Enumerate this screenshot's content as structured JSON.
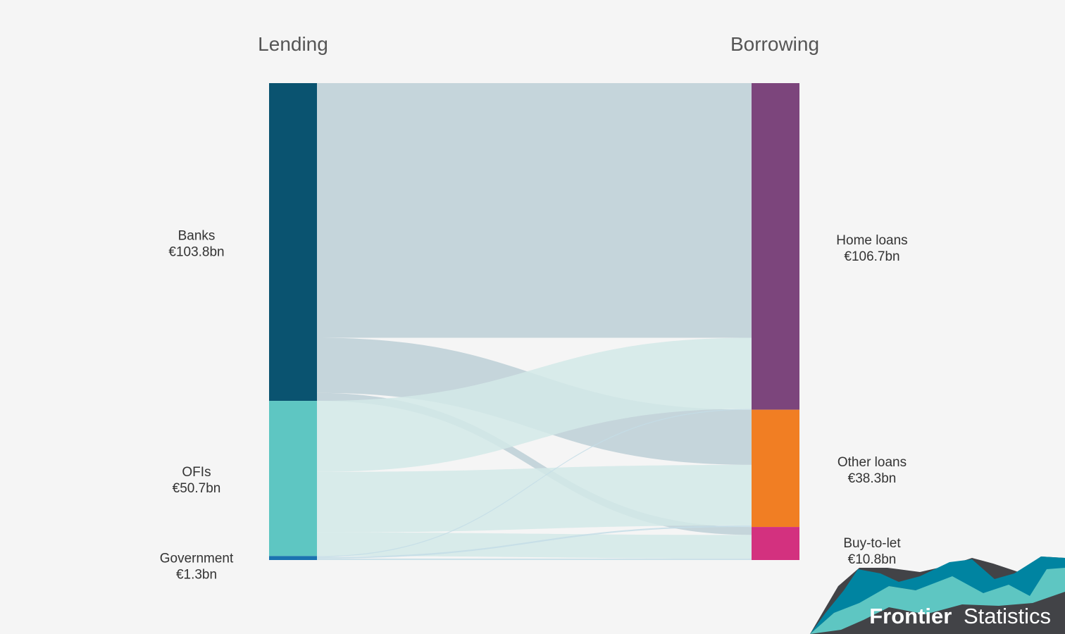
{
  "chart_data": {
    "type": "sankey",
    "units": "€bn",
    "columns": [
      "Lending",
      "Borrowing"
    ],
    "sources": [
      {
        "id": "banks",
        "label": "Banks",
        "value_text": "€103.8bn",
        "value": 103.8,
        "color": "#0a5370"
      },
      {
        "id": "ofis",
        "label": "OFIs",
        "value_text": "€50.7bn",
        "value": 50.7,
        "color": "#5ec6c2"
      },
      {
        "id": "government",
        "label": "Government",
        "value_text": "€1.3bn",
        "value": 1.3,
        "color": "#1b73b0"
      }
    ],
    "targets": [
      {
        "id": "home",
        "label": "Home loans",
        "value_text": "€106.7bn",
        "value": 106.7,
        "color": "#7c457c"
      },
      {
        "id": "other",
        "label": "Other loans",
        "value_text": "€38.3bn",
        "value": 38.3,
        "color": "#f17e23"
      },
      {
        "id": "btl",
        "label": "Buy-to-let",
        "value_text": "€10.8bn",
        "value": 10.8,
        "color": "#d3317f"
      }
    ],
    "flows": [
      {
        "source": "banks",
        "target": "home",
        "value": 83.2
      },
      {
        "source": "banks",
        "target": "other",
        "value": 18.0
      },
      {
        "source": "banks",
        "target": "btl",
        "value": 2.6
      },
      {
        "source": "ofis",
        "target": "home",
        "value": 23.2
      },
      {
        "source": "ofis",
        "target": "other",
        "value": 19.8
      },
      {
        "source": "ofis",
        "target": "btl",
        "value": 7.7
      },
      {
        "source": "government",
        "target": "home",
        "value": 0.3
      },
      {
        "source": "government",
        "target": "other",
        "value": 0.5
      },
      {
        "source": "government",
        "target": "btl",
        "value": 0.5
      }
    ],
    "link_colors": {
      "banks": "#bccfd6",
      "ofis": "#d2e9e8",
      "government": "#c4dde6"
    }
  },
  "brand": {
    "name_bold": "Frontier",
    "name_regular": "Statistics",
    "colors": {
      "dark": "#424347",
      "teal": "#5ec6c2",
      "blue": "#0084a1"
    }
  }
}
